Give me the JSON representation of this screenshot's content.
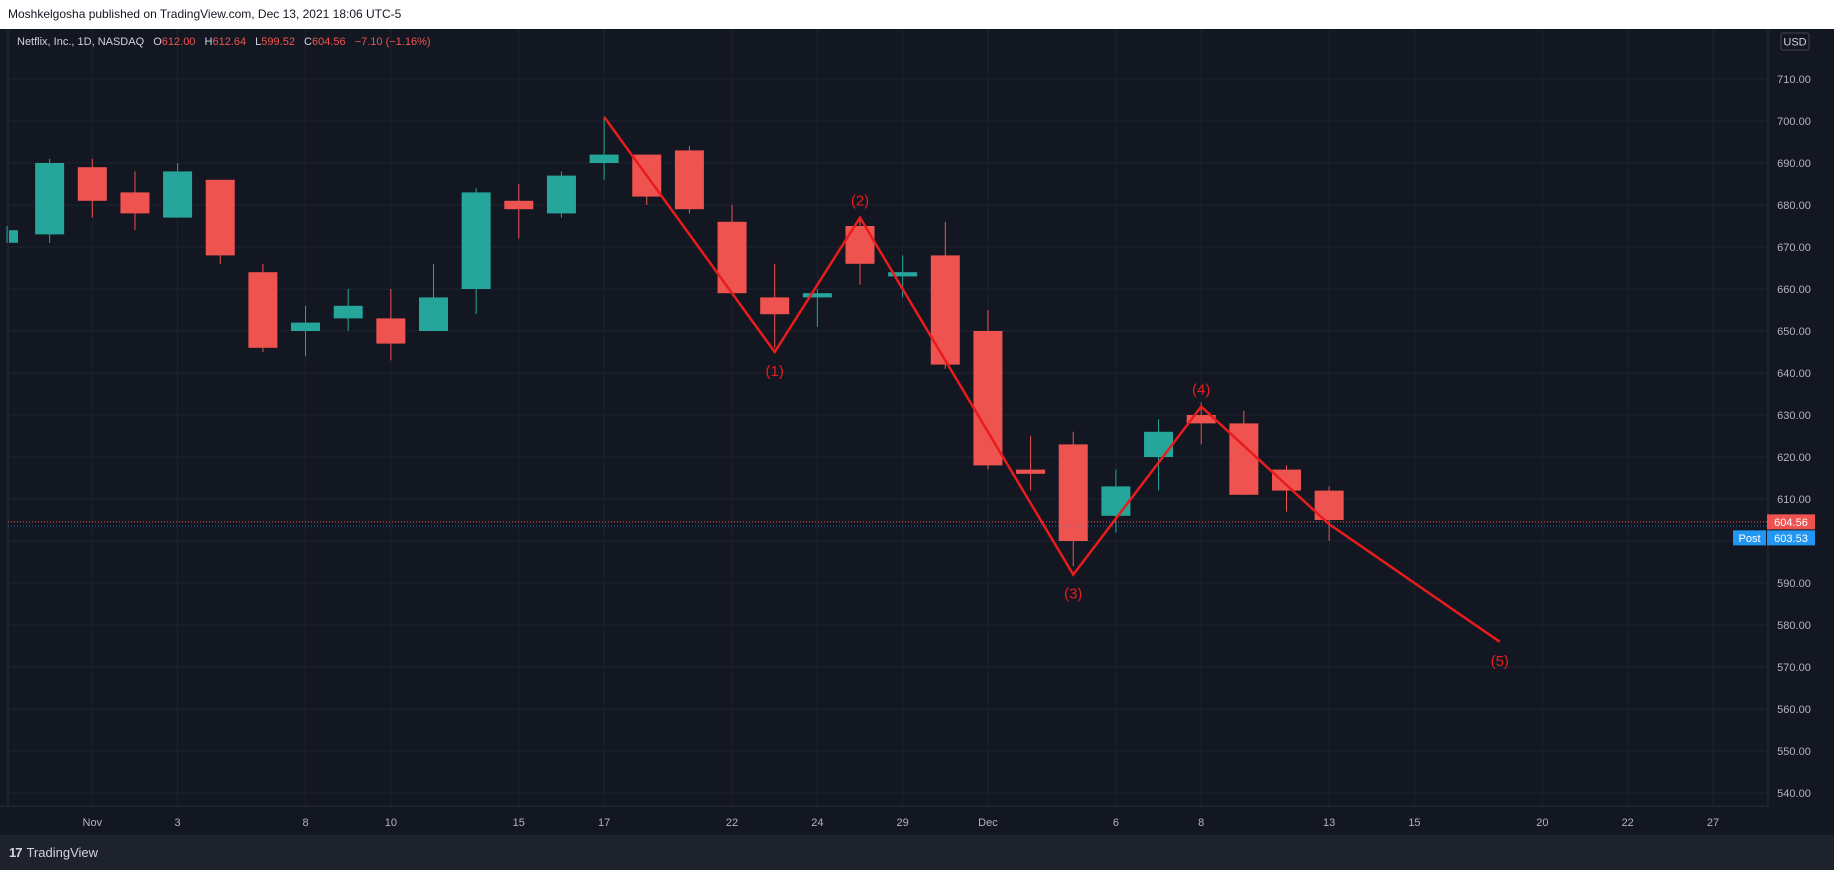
{
  "header": {
    "published": "Moshkelgosha published on TradingView.com, Dec 13, 2021 18:06 UTC-5"
  },
  "legend": {
    "symbol": "Netflix, Inc., 1D, NASDAQ",
    "o_label": "O",
    "o_value": "612.00",
    "h_label": "H",
    "h_value": "612.64",
    "l_label": "L",
    "l_value": "599.52",
    "c_label": "C",
    "c_value": "604.56",
    "change": "−7.10 (−1.16%)"
  },
  "currency": "USD",
  "price_labels": {
    "last": "604.56",
    "post_tag": "Post",
    "post": "603.53"
  },
  "footer": {
    "brand": "TradingView",
    "brand_mark": "17"
  },
  "colors": {
    "up": "#26a69a",
    "down": "#ef5350",
    "wave": "#e81c1c",
    "post": "#2196f3",
    "bg": "#131722",
    "grid": "#1f2330",
    "text": "#b2b5be"
  },
  "chart_data": {
    "type": "candlestick",
    "y_range": [
      535,
      715
    ],
    "y_ticks": [
      540,
      550,
      560,
      570,
      580,
      590,
      600,
      610,
      620,
      630,
      640,
      650,
      660,
      670,
      680,
      690,
      700,
      710
    ],
    "x_ticks": [
      {
        "i": 2,
        "label": "Nov"
      },
      {
        "i": 4,
        "label": "3"
      },
      {
        "i": 7,
        "label": "8"
      },
      {
        "i": 9,
        "label": "10"
      },
      {
        "i": 12,
        "label": "15"
      },
      {
        "i": 14,
        "label": "17"
      },
      {
        "i": 17,
        "label": "22"
      },
      {
        "i": 19,
        "label": "24"
      },
      {
        "i": 21,
        "label": "29"
      },
      {
        "i": 23,
        "label": "Dec"
      },
      {
        "i": 26,
        "label": "6"
      },
      {
        "i": 28,
        "label": "8"
      },
      {
        "i": 31,
        "label": "13"
      },
      {
        "i": 33,
        "label": "15"
      },
      {
        "i": 36,
        "label": "20"
      },
      {
        "i": 38,
        "label": "22"
      },
      {
        "i": 40,
        "label": "27"
      }
    ],
    "candles": [
      {
        "i": 0,
        "o": 671,
        "h": 675,
        "l": 671,
        "c": 674
      },
      {
        "i": 1,
        "o": 673,
        "h": 691,
        "l": 671,
        "c": 690
      },
      {
        "i": 2,
        "o": 689,
        "h": 691,
        "l": 677,
        "c": 681
      },
      {
        "i": 3,
        "o": 683,
        "h": 688,
        "l": 674,
        "c": 678
      },
      {
        "i": 4,
        "o": 677,
        "h": 690,
        "l": 677,
        "c": 688
      },
      {
        "i": 5,
        "o": 686,
        "h": 686,
        "l": 666,
        "c": 668
      },
      {
        "i": 6,
        "o": 664,
        "h": 666,
        "l": 645,
        "c": 646
      },
      {
        "i": 7,
        "o": 650,
        "h": 656,
        "l": 644,
        "c": 652
      },
      {
        "i": 8,
        "o": 653,
        "h": 660,
        "l": 650,
        "c": 656
      },
      {
        "i": 9,
        "o": 653,
        "h": 660,
        "l": 643,
        "c": 647
      },
      {
        "i": 10,
        "o": 650,
        "h": 666,
        "l": 650,
        "c": 658
      },
      {
        "i": 11,
        "o": 660,
        "h": 684,
        "l": 654,
        "c": 683
      },
      {
        "i": 12,
        "o": 681,
        "h": 685,
        "l": 672,
        "c": 679
      },
      {
        "i": 13,
        "o": 678,
        "h": 688,
        "l": 677,
        "c": 687
      },
      {
        "i": 14,
        "o": 690,
        "h": 701,
        "l": 686,
        "c": 692
      },
      {
        "i": 15,
        "o": 692,
        "h": 692,
        "l": 680,
        "c": 682
      },
      {
        "i": 16,
        "o": 693,
        "h": 694,
        "l": 678,
        "c": 679
      },
      {
        "i": 17,
        "o": 676,
        "h": 680,
        "l": 659,
        "c": 659
      },
      {
        "i": 18,
        "o": 658,
        "h": 666,
        "l": 646,
        "c": 654
      },
      {
        "i": 19,
        "o": 658,
        "h": 660,
        "l": 651,
        "c": 659
      },
      {
        "i": 20,
        "o": 675,
        "h": 677,
        "l": 661,
        "c": 666
      },
      {
        "i": 21,
        "o": 663,
        "h": 668,
        "l": 658,
        "c": 664
      },
      {
        "i": 22,
        "o": 668,
        "h": 676,
        "l": 641,
        "c": 642
      },
      {
        "i": 23,
        "o": 650,
        "h": 655,
        "l": 617,
        "c": 618
      },
      {
        "i": 24,
        "o": 617,
        "h": 625,
        "l": 612,
        "c": 616
      },
      {
        "i": 25,
        "o": 623,
        "h": 626,
        "l": 594,
        "c": 600
      },
      {
        "i": 26,
        "o": 606,
        "h": 617,
        "l": 602,
        "c": 613
      },
      {
        "i": 27,
        "o": 620,
        "h": 629,
        "l": 612,
        "c": 626
      },
      {
        "i": 28,
        "o": 630,
        "h": 633,
        "l": 623,
        "c": 628
      },
      {
        "i": 29,
        "o": 628,
        "h": 631,
        "l": 611,
        "c": 611
      },
      {
        "i": 30,
        "o": 617,
        "h": 618,
        "l": 607,
        "c": 612
      },
      {
        "i": 31,
        "o": 612,
        "h": 613,
        "l": 600,
        "c": 605
      }
    ],
    "wave_line": [
      {
        "i": 14,
        "v": 701
      },
      {
        "i": 18,
        "v": 645
      },
      {
        "i": 20,
        "v": 677
      },
      {
        "i": 25,
        "v": 592
      },
      {
        "i": 28,
        "v": 632
      },
      {
        "i": 31,
        "v": 604
      },
      {
        "i": 35,
        "v": 576
      }
    ],
    "wave_labels": [
      {
        "i": 18,
        "v": 645,
        "text": "(1)",
        "pos": "below"
      },
      {
        "i": 20,
        "v": 677,
        "text": "(2)",
        "pos": "above"
      },
      {
        "i": 25,
        "v": 592,
        "text": "(3)",
        "pos": "below"
      },
      {
        "i": 28,
        "v": 632,
        "text": "(4)",
        "pos": "above"
      },
      {
        "i": 35,
        "v": 576,
        "text": "(5)",
        "pos": "below"
      }
    ],
    "last_price": 604.56,
    "post_price": 603.53
  }
}
